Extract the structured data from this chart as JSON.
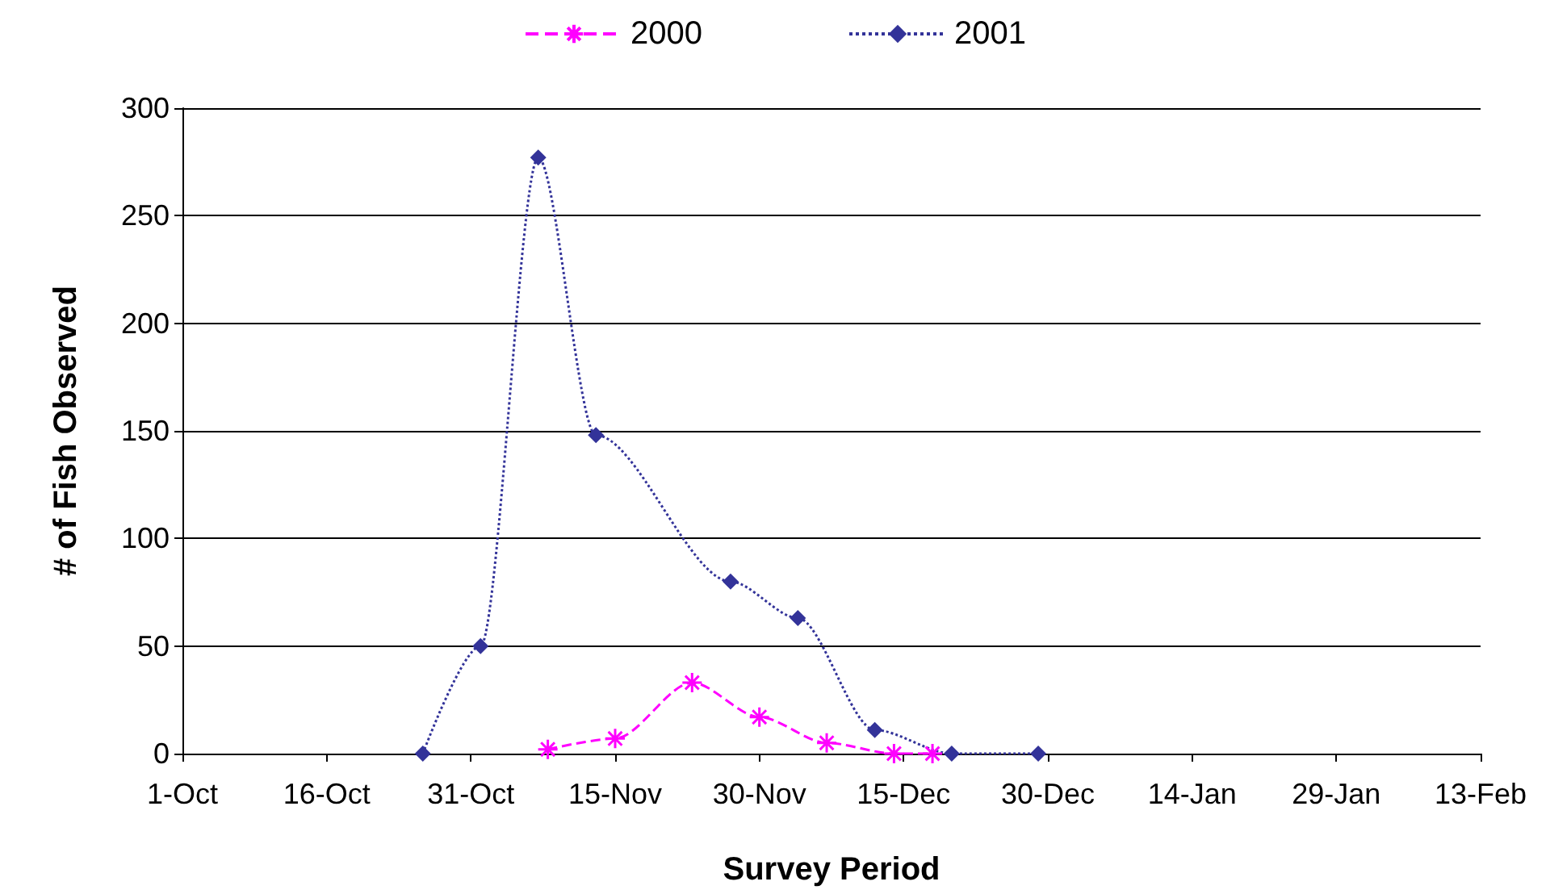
{
  "chart_data": {
    "type": "line",
    "xlabel": "Survey Period",
    "ylabel": "# of Fish Observed",
    "xlim": [
      "2000-10-01",
      "2001-02-13"
    ],
    "xticks": [
      {
        "value": "2000-10-01",
        "label": "1-Oct"
      },
      {
        "value": "2000-10-16",
        "label": "16-Oct"
      },
      {
        "value": "2000-10-31",
        "label": "31-Oct"
      },
      {
        "value": "2000-11-15",
        "label": "15-Nov"
      },
      {
        "value": "2000-11-30",
        "label": "30-Nov"
      },
      {
        "value": "2000-12-15",
        "label": "15-Dec"
      },
      {
        "value": "2000-12-30",
        "label": "30-Dec"
      },
      {
        "value": "2001-01-14",
        "label": "14-Jan"
      },
      {
        "value": "2001-01-29",
        "label": "29-Jan"
      },
      {
        "value": "2001-02-13",
        "label": "13-Feb"
      }
    ],
    "ylim": [
      0,
      300
    ],
    "yticks": [
      0,
      50,
      100,
      150,
      200,
      250,
      300
    ],
    "grid": "y",
    "legend": "top",
    "series": [
      {
        "name": "2000",
        "color": "#ff00ff",
        "marker": "cross",
        "line_style": "dashed",
        "x": [
          "2000-11-08",
          "2000-11-15",
          "2000-11-23",
          "2000-11-30",
          "2000-12-07",
          "2000-12-14",
          "2000-12-18"
        ],
        "values": [
          2,
          7,
          33,
          17,
          5,
          0,
          0
        ]
      },
      {
        "name": "2001",
        "color": "#333399",
        "marker": "diamond",
        "line_style": "dotted",
        "x": [
          "2000-10-26",
          "2000-11-01",
          "2000-11-07",
          "2000-11-13",
          "2000-11-27",
          "2000-12-04",
          "2000-12-12",
          "2000-12-20",
          "2000-12-29"
        ],
        "values": [
          0,
          50,
          277,
          148,
          80,
          63,
          11,
          0,
          0
        ]
      }
    ]
  }
}
